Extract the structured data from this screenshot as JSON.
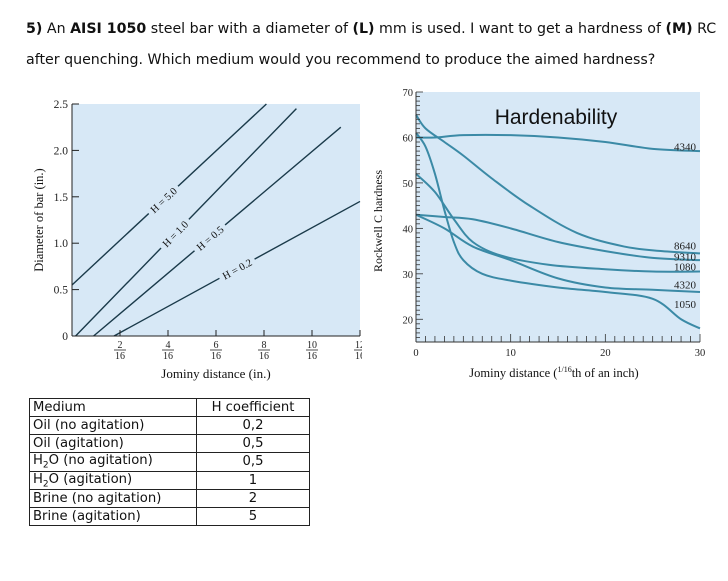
{
  "question": {
    "number": "5)",
    "part1": " An ",
    "steel": "AISI 1050",
    "part2": " steel bar with a diameter of ",
    "L": "(L)",
    "part3": " mm is used. I want to get a hardness of ",
    "M": "(M)",
    "part4": " RC after quenching. Which medium would you recommend to produce the aimed hardness?"
  },
  "chart_data": [
    {
      "type": "line",
      "title": "",
      "xlabel": "Jominy distance (in.)",
      "ylabel": "Diameter of bar (in.)",
      "xlim": [
        0,
        12
      ],
      "ylim": [
        0,
        2.5
      ],
      "x_ticks": [
        {
          "value": 2,
          "num": "2",
          "den": "16"
        },
        {
          "value": 4,
          "num": "4",
          "den": "16"
        },
        {
          "value": 6,
          "num": "6",
          "den": "16"
        },
        {
          "value": 8,
          "num": "8",
          "den": "16"
        },
        {
          "value": 10,
          "num": "10",
          "den": "16"
        },
        {
          "value": 12,
          "num": "12",
          "den": "16"
        }
      ],
      "y_ticks": [
        "0",
        "0.5",
        "1.0",
        "1.5",
        "2.0",
        "2.5"
      ],
      "background": "#d7e8f6",
      "line_color": "#1a3a4a",
      "series": [
        {
          "name": "H = 5.0",
          "x": [
            0,
            8.1
          ],
          "y": [
            0.55,
            2.5
          ]
        },
        {
          "name": "H = 1.0",
          "x": [
            0.15,
            9.35
          ],
          "y": [
            0,
            2.45
          ]
        },
        {
          "name": "H = 0.5",
          "x": [
            0.9,
            11.2
          ],
          "y": [
            0,
            2.25
          ]
        },
        {
          "name": "H = 0.2",
          "x": [
            1.75,
            12
          ],
          "y": [
            0,
            1.45
          ]
        }
      ]
    },
    {
      "type": "line",
      "title": "Hardenability",
      "xlabel": "Jominy distance (1/16th of an inch)",
      "ylabel": "Rockwell C hardness",
      "xlim": [
        0,
        30
      ],
      "ylim": [
        15,
        70
      ],
      "x_ticks": [
        "0",
        "10",
        "20",
        "30"
      ],
      "y_ticks": [
        "20",
        "30",
        "40",
        "50",
        "60",
        "70"
      ],
      "background": "#d7e8f6",
      "line_color": "#3b8aa6",
      "series": [
        {
          "name": "4340",
          "x": [
            0,
            2,
            5,
            10,
            15,
            20,
            25,
            30
          ],
          "y": [
            60,
            60,
            60.5,
            60.5,
            60,
            59,
            57.5,
            57
          ]
        },
        {
          "name": "8640",
          "x": [
            0,
            1,
            3,
            5,
            8,
            12,
            17,
            22,
            26,
            30
          ],
          "y": [
            65,
            62,
            59,
            56,
            51,
            45,
            39,
            36,
            35,
            34.5
          ]
        },
        {
          "name": "9310",
          "x": [
            0,
            3,
            6,
            10,
            15,
            20,
            25,
            30
          ],
          "y": [
            43,
            42.5,
            42,
            40,
            37,
            35,
            33.5,
            33
          ]
        },
        {
          "name": "1080",
          "x": [
            0,
            2,
            4,
            6,
            9,
            14,
            20,
            25,
            30
          ],
          "y": [
            52,
            48,
            42,
            37,
            34,
            32,
            31,
            30.5,
            30.5
          ]
        },
        {
          "name": "4320",
          "x": [
            0,
            3,
            6,
            10,
            15,
            20,
            25,
            30
          ],
          "y": [
            43,
            40,
            36,
            33,
            29,
            27,
            26.5,
            26
          ]
        },
        {
          "name": "1050",
          "x": [
            0,
            1,
            2,
            3,
            4,
            5,
            7,
            10,
            15,
            20,
            25,
            28,
            30
          ],
          "y": [
            61,
            58,
            52,
            44,
            37,
            33,
            30,
            28.5,
            27,
            26,
            24.5,
            20,
            18
          ]
        }
      ]
    }
  ],
  "table": {
    "headers": [
      "Medium",
      "H coefficient"
    ],
    "rows": [
      {
        "medium": "Oil (no agitation)",
        "h": "0,2"
      },
      {
        "medium": "Oil (agitation)",
        "h": "0,5"
      },
      {
        "medium_prefix": "H",
        "medium_sub": "2",
        "medium_suffix": "O (no agitation)",
        "h": "0,5"
      },
      {
        "medium_prefix": "H",
        "medium_sub": "2",
        "medium_suffix": "O (agitation)",
        "h": "1"
      },
      {
        "medium": "Brine (no agitation)",
        "h": "2"
      },
      {
        "medium": "Brine (agitation)",
        "h": "5"
      }
    ]
  }
}
